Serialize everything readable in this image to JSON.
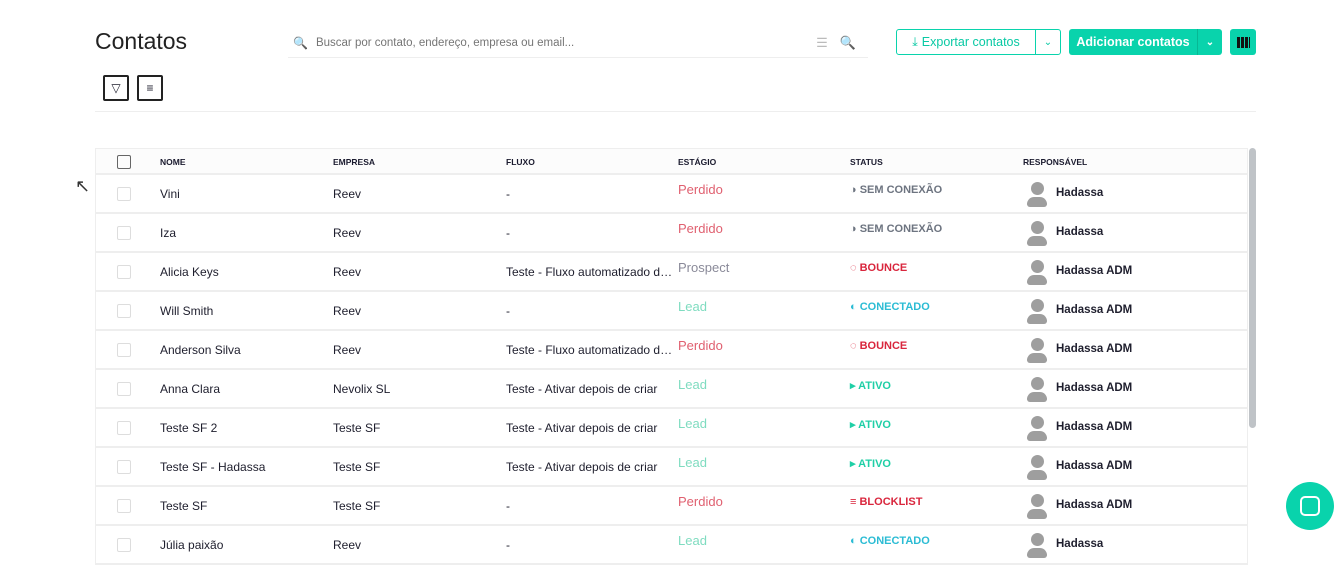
{
  "header": {
    "title": "Contatos",
    "search_placeholder": "Buscar por contato, endereço, empresa ou email...",
    "export_label": "Exportar contatos",
    "add_label": "Adicionar contatos"
  },
  "colors": {
    "accent": "#09d3ac",
    "lost": "#e06070",
    "prospect": "#8a8a99",
    "lead": "#7fdcc0",
    "inactive": "#6d7480",
    "bounce": "#d9263d",
    "connected": "#2bbcd4",
    "active": "#1fcfa6"
  },
  "table": {
    "columns": [
      "NOME",
      "EMPRESA",
      "FLUXO",
      "ESTÁGIO",
      "STATUS",
      "RESPONSÁVEL"
    ],
    "rows": [
      {
        "nome": "Vini",
        "empresa": "Reev",
        "fluxo": "-",
        "estagio": "Perdido",
        "status": "SEM CONEXÃO",
        "status_icon": "half-circle-dashed-icon",
        "responsavel": "Hadassa"
      },
      {
        "nome": "Iza",
        "empresa": "Reev",
        "fluxo": "-",
        "estagio": "Perdido",
        "status": "SEM CONEXÃO",
        "status_icon": "half-circle-dashed-icon",
        "responsavel": "Hadassa"
      },
      {
        "nome": "Alicia Keys",
        "empresa": "Reev",
        "fluxo": "Teste - Fluxo automatizado de envio",
        "estagio": "Prospect",
        "status": "BOUNCE",
        "status_icon": "dashed-circle-icon",
        "responsavel": "Hadassa ADM"
      },
      {
        "nome": "Will Smith",
        "empresa": "Reev",
        "fluxo": "-",
        "estagio": "Lead",
        "status": "CONECTADO",
        "status_icon": "half-circle-icon",
        "responsavel": "Hadassa ADM"
      },
      {
        "nome": "Anderson Silva",
        "empresa": "Reev",
        "fluxo": "Teste - Fluxo automatizado de envio",
        "estagio": "Perdido",
        "status": "BOUNCE",
        "status_icon": "dashed-circle-icon",
        "responsavel": "Hadassa ADM"
      },
      {
        "nome": "Anna Clara",
        "empresa": "Nevolix SL",
        "fluxo": "Teste - Ativar depois de criar",
        "estagio": "Lead",
        "status": "ATIVO",
        "status_icon": "play-icon",
        "responsavel": "Hadassa ADM"
      },
      {
        "nome": "Teste SF 2",
        "empresa": "Teste SF",
        "fluxo": "Teste - Ativar depois de criar",
        "estagio": "Lead",
        "status": "ATIVO",
        "status_icon": "play-icon",
        "responsavel": "Hadassa ADM"
      },
      {
        "nome": "Teste SF - Hadassa",
        "empresa": "Teste SF",
        "fluxo": "Teste - Ativar depois de criar",
        "estagio": "Lead",
        "status": "ATIVO",
        "status_icon": "play-icon",
        "responsavel": "Hadassa ADM"
      },
      {
        "nome": "Teste SF",
        "empresa": "Teste SF",
        "fluxo": "-",
        "estagio": "Perdido",
        "status": "BLOCKLIST",
        "status_icon": "list-icon",
        "responsavel": "Hadassa ADM"
      },
      {
        "nome": "Júlia paixão",
        "empresa": "Reev",
        "fluxo": "-",
        "estagio": "Lead",
        "status": "CONECTADO",
        "status_icon": "half-circle-icon",
        "responsavel": "Hadassa"
      }
    ]
  }
}
